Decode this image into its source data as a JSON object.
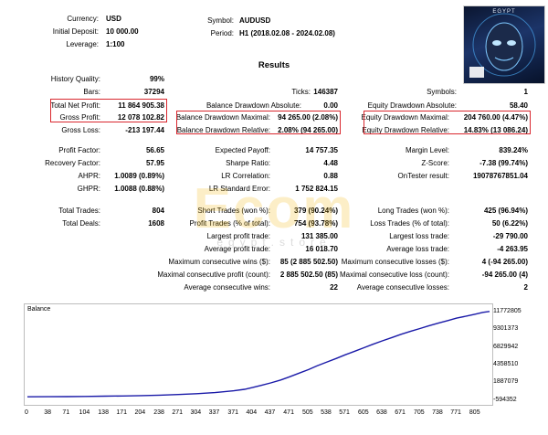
{
  "header": {
    "currency_label": "Currency:",
    "currency_value": "USD",
    "deposit_label": "Initial Deposit:",
    "deposit_value": "10 000.00",
    "leverage_label": "Leverage:",
    "leverage_value": "1:100",
    "symbol_label": "Symbol:",
    "symbol_value": "AUDUSD",
    "period_label": "Period:",
    "period_value": "H1 (2018.02.08 - 2024.02.08)",
    "results_title": "Results",
    "logo_text": "EGYPT"
  },
  "stats": {
    "history_quality_label": "History Quality:",
    "history_quality_value": "99%",
    "bars_label": "Bars:",
    "bars_value": "37294",
    "ticks_label": "Ticks:",
    "ticks_value": "146387",
    "symbols_label": "Symbols:",
    "symbols_value": "1",
    "net_profit_label": "Total Net Profit:",
    "net_profit_value": "11 864 905.38",
    "bal_dd_abs_label": "Balance Drawdown Absolute:",
    "bal_dd_abs_value": "0.00",
    "eq_dd_abs_label": "Equity Drawdown Absolute:",
    "eq_dd_abs_value": "58.40",
    "gross_profit_label": "Gross Profit:",
    "gross_profit_value": "12 078 102.82",
    "bal_dd_max_label": "Balance Drawdown Maximal:",
    "bal_dd_max_value": "94 265.00 (2.08%)",
    "eq_dd_max_label": "Equity Drawdown Maximal:",
    "eq_dd_max_value": "204 760.00 (4.47%)",
    "gross_loss_label": "Gross Loss:",
    "gross_loss_value": "-213 197.44",
    "bal_dd_rel_label": "Balance Drawdown Relative:",
    "bal_dd_rel_value": "2.08% (94 265.00)",
    "eq_dd_rel_label": "Equity Drawdown Relative:",
    "eq_dd_rel_value": "14.83% (13 086.24)",
    "profit_factor_label": "Profit Factor:",
    "profit_factor_value": "56.65",
    "expected_payoff_label": "Expected Payoff:",
    "expected_payoff_value": "14 757.35",
    "margin_level_label": "Margin Level:",
    "margin_level_value": "839.24%",
    "recovery_factor_label": "Recovery Factor:",
    "recovery_factor_value": "57.95",
    "sharpe_label": "Sharpe Ratio:",
    "sharpe_value": "4.48",
    "zscore_label": "Z-Score:",
    "zscore_value": "-7.38 (99.74%)",
    "ahpr_label": "AHPR:",
    "ahpr_value": "1.0089 (0.89%)",
    "lr_corr_label": "LR Correlation:",
    "lr_corr_value": "0.88",
    "ontester_label": "OnTester result:",
    "ontester_value": "19078767851.04",
    "ghpr_label": "GHPR:",
    "ghpr_value": "1.0088 (0.88%)",
    "lr_std_label": "LR Standard Error:",
    "lr_std_value": "1 752 824.15",
    "total_trades_label": "Total Trades:",
    "total_trades_value": "804",
    "short_trades_label": "Short Trades (won %):",
    "short_trades_value": "379 (90.24%)",
    "long_trades_label": "Long Trades (won %):",
    "long_trades_value": "425 (96.94%)",
    "total_deals_label": "Total Deals:",
    "total_deals_value": "1608",
    "profit_trades_label": "Profit Trades (% of total):",
    "profit_trades_value": "754 (93.78%)",
    "loss_trades_label": "Loss Trades (% of total):",
    "loss_trades_value": "50 (6.22%)",
    "largest_profit_label": "Largest profit trade:",
    "largest_profit_value": "131 385.00",
    "largest_loss_label": "Largest loss trade:",
    "largest_loss_value": "-29 790.00",
    "avg_profit_label": "Average profit trade:",
    "avg_profit_value": "16 018.70",
    "avg_loss_label": "Average loss trade:",
    "avg_loss_value": "-4 263.95",
    "max_consec_wins_label": "Maximum consecutive wins ($):",
    "max_consec_wins_value": "85 (2 885 502.50)",
    "max_consec_losses_label": "Maximum consecutive losses ($):",
    "max_consec_losses_value": "4 (-94 265.00)",
    "maximal_consec_profit_label": "Maximal consecutive profit (count):",
    "maximal_consec_profit_value": "2 885 502.50 (85)",
    "maximal_consec_loss_label": "Maximal consecutive loss (count):",
    "maximal_consec_loss_value": "-94 265.00 (4)",
    "avg_consec_wins_label": "Average consecutive wins:",
    "avg_consec_wins_value": "22",
    "avg_consec_losses_label": "Average consecutive losses:",
    "avg_consec_losses_value": "2"
  },
  "watermark": {
    "main": "Ecom",
    "sub": "egypt.store"
  },
  "chart_data": {
    "type": "line",
    "title": "Balance",
    "x_ticks": [
      0,
      38,
      71,
      104,
      138,
      171,
      204,
      238,
      271,
      304,
      337,
      371,
      404,
      437,
      471,
      505,
      538,
      571,
      605,
      638,
      671,
      705,
      738,
      771,
      805
    ],
    "y_ticks": [
      -594352,
      1887079,
      4358510,
      6829942,
      9301373,
      11772805
    ],
    "xlim": [
      0,
      830
    ],
    "ylim": [
      -594352,
      12100000
    ],
    "series": [
      {
        "color": "#1a1aa8",
        "x": [
          0,
          38,
          71,
          104,
          138,
          171,
          204,
          238,
          271,
          304,
          337,
          350,
          371,
          390,
          404,
          420,
          437,
          455,
          471,
          488,
          505,
          520,
          538,
          555,
          571,
          588,
          605,
          620,
          638,
          655,
          671,
          688,
          705,
          720,
          738,
          755,
          771,
          790,
          805,
          818,
          830
        ],
        "y": [
          10000,
          25000,
          45000,
          70000,
          100000,
          130000,
          180000,
          240000,
          330000,
          450000,
          600000,
          700000,
          850000,
          1050000,
          1300000,
          1600000,
          1950000,
          2350000,
          2800000,
          3300000,
          3800000,
          4300000,
          4850000,
          5350000,
          5850000,
          6350000,
          6850000,
          7300000,
          7800000,
          8250000,
          8700000,
          9100000,
          9500000,
          9850000,
          10250000,
          10600000,
          10950000,
          11250000,
          11500000,
          11750000,
          11874905
        ]
      }
    ]
  }
}
